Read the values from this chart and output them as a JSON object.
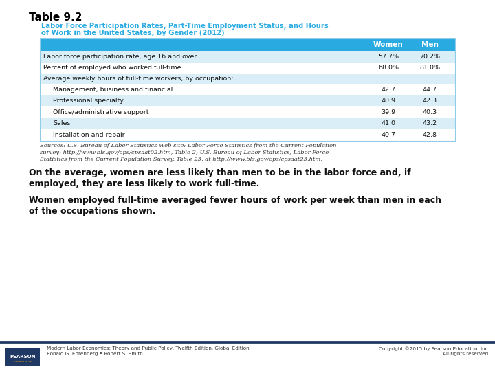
{
  "title": "Table 9.2",
  "table_title_line1": "Labor Force Participation Rates, Part-Time Employment Status, and Hours",
  "table_title_line2": "of Work in the United States, by Gender (2012)",
  "rows": [
    [
      "Labor force participation rate, age 16 and over",
      "57.7%",
      "70.2%"
    ],
    [
      "Percent of employed who worked full-time",
      "68.0%",
      "81.0%"
    ],
    [
      "Average weekly hours of full-time workers, by occupation:",
      "",
      ""
    ],
    [
      "Management, business and financial",
      "42.7",
      "44.7"
    ],
    [
      "Professional specialty",
      "40.9",
      "42.3"
    ],
    [
      "Office/administrative support",
      "39.9",
      "40.3"
    ],
    [
      "Sales",
      "41.0",
      "43.2"
    ],
    [
      "Installation and repair",
      "40.7",
      "42.8"
    ]
  ],
  "row_indented": [
    false,
    false,
    false,
    true,
    true,
    true,
    true,
    true
  ],
  "sources_text_lines": [
    "Sources: U.S. Bureau of Labor Statistics Web site: Labor Force Statistics from the Current Population",
    "survey: http://www.bls.gov/cps/cpsaat02.htm, Table 2; U.S. Bureau of Labor Statistics, Labor Force",
    "Statistics from the Current Population Survey, Table 23, at http://www.bls.gov/cps/cpsaat23.htm."
  ],
  "body_text1_lines": [
    "On the average, women are less likely than men to be in the labor force and, if",
    "employed, they are less likely to work full-time."
  ],
  "body_text2_lines": [
    "Women employed full-time averaged fewer hours of work per week than men in each",
    "of the occupations shown."
  ],
  "footer_left1": "Modern Labor Economics: Theory and Public Policy, Twelfth Edition, Global Edition",
  "footer_left2": "Ronald G. Ehrenberg • Robert S. Smith",
  "footer_right1": "Copyright ©2015 by Pearson Education, Inc.",
  "footer_right2": "All rights reserved.",
  "header_bg": "#29ABE2",
  "row_bg_even": "#D9EEF7",
  "row_bg_odd": "#FFFFFF",
  "table_title_color": "#29ABE2",
  "title_color": "#000000",
  "pearson_bg": "#1F3864",
  "footer_line_color": "#1F3864",
  "bg_color": "#FFFFFF",
  "sources_italic_prefix": "Labor Force"
}
